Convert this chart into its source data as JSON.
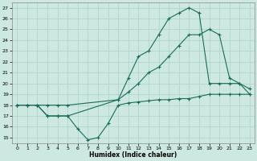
{
  "title": "",
  "xlabel": "Humidex (Indice chaleur)",
  "bg_color": "#cce8e0",
  "line_color": "#1a6b5a",
  "grid_color": "#aad0c8",
  "xlim": [
    -0.5,
    23.5
  ],
  "ylim": [
    14.5,
    27.5
  ],
  "xticks": [
    0,
    1,
    2,
    3,
    4,
    5,
    6,
    7,
    8,
    9,
    10,
    11,
    12,
    13,
    14,
    15,
    16,
    17,
    18,
    19,
    20,
    21,
    22,
    23
  ],
  "yticks": [
    15,
    16,
    17,
    18,
    19,
    20,
    21,
    22,
    23,
    24,
    25,
    26,
    27
  ],
  "line1_x": [
    0,
    1,
    2,
    3,
    4,
    5,
    10,
    11,
    12,
    13,
    14,
    15,
    16,
    17,
    18,
    19,
    20,
    21,
    22,
    23
  ],
  "line1_y": [
    18,
    18,
    18,
    17,
    17,
    17,
    18.5,
    20.5,
    22.5,
    23,
    24.5,
    26,
    26.5,
    27,
    26.5,
    20,
    20,
    20,
    20,
    19.5
  ],
  "line2_x": [
    0,
    1,
    2,
    3,
    4,
    5,
    10,
    11,
    12,
    13,
    14,
    15,
    16,
    17,
    18,
    19,
    20,
    21,
    22,
    23
  ],
  "line2_y": [
    18,
    18,
    18,
    18,
    18,
    18,
    18.5,
    19.2,
    20,
    21,
    21.5,
    22.5,
    23.5,
    24.5,
    24.5,
    25,
    24.5,
    20.5,
    20,
    19
  ],
  "line3_x": [
    0,
    1,
    2,
    3,
    4,
    5,
    6,
    7,
    8,
    9,
    10,
    11,
    12,
    13,
    14,
    15,
    16,
    17,
    18,
    19,
    20,
    21,
    22,
    23
  ],
  "line3_y": [
    18,
    18,
    18,
    17,
    17,
    17,
    15.8,
    14.8,
    15,
    16.3,
    18,
    18.2,
    18.3,
    18.4,
    18.5,
    18.5,
    18.6,
    18.6,
    18.8,
    19,
    19,
    19,
    19,
    19
  ]
}
